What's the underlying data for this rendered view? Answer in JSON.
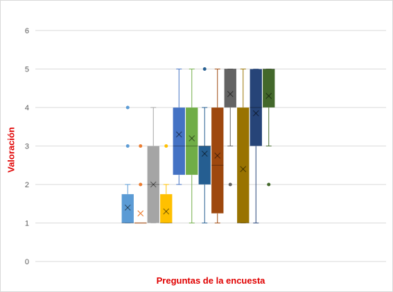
{
  "chart_data": {
    "type": "box",
    "title": "",
    "xlabel": "Preguntas de la encuesta",
    "ylabel": "Valoración",
    "ylim": [
      0,
      6
    ],
    "yticks": [
      0,
      1,
      2,
      3,
      4,
      5,
      6
    ],
    "grid": true,
    "legend": "none",
    "series": [
      {
        "color": "#5b9bd5",
        "min": 1,
        "q1": 1,
        "median": 1,
        "q3": 1.75,
        "max": 2,
        "mean": 1.4,
        "outliers": [
          3,
          4
        ]
      },
      {
        "color": "#ed7d31",
        "min": 1,
        "q1": 1,
        "median": 1,
        "q3": 1,
        "max": 1,
        "mean": 1.25,
        "outliers": [
          2,
          3
        ]
      },
      {
        "color": "#a5a5a5",
        "min": 1,
        "q1": 1,
        "median": 2,
        "q3": 3,
        "max": 4,
        "mean": 2.0,
        "outliers": []
      },
      {
        "color": "#ffc000",
        "min": 1,
        "q1": 1,
        "median": 1,
        "q3": 1.75,
        "max": 2,
        "mean": 1.3,
        "outliers": [
          3
        ]
      },
      {
        "color": "#4472c4",
        "min": 2,
        "q1": 2.25,
        "median": 3,
        "q3": 4,
        "max": 5,
        "mean": 3.3,
        "outliers": []
      },
      {
        "color": "#70ad47",
        "min": 1,
        "q1": 2.25,
        "median": 3,
        "q3": 4,
        "max": 5,
        "mean": 3.2,
        "outliers": []
      },
      {
        "color": "#255e91",
        "min": 1,
        "q1": 2,
        "median": 3,
        "q3": 3,
        "max": 4,
        "mean": 2.8,
        "outliers": [
          5
        ]
      },
      {
        "color": "#9e480e",
        "min": 1,
        "q1": 1.25,
        "median": 2.5,
        "q3": 4,
        "max": 5,
        "mean": 2.75,
        "outliers": []
      },
      {
        "color": "#636363",
        "min": 3,
        "q1": 4,
        "median": 5,
        "q3": 5,
        "max": 5,
        "mean": 4.35,
        "outliers": [
          2
        ]
      },
      {
        "color": "#997300",
        "min": 1,
        "q1": 1,
        "median": 1,
        "q3": 4,
        "max": 5,
        "mean": 2.4,
        "outliers": []
      },
      {
        "color": "#264478",
        "min": 1,
        "q1": 3,
        "median": 4,
        "q3": 5,
        "max": 5,
        "mean": 3.85,
        "outliers": []
      },
      {
        "color": "#43682b",
        "min": 3,
        "q1": 4,
        "median": 5,
        "q3": 5,
        "max": 5,
        "mean": 4.3,
        "outliers": [
          2
        ]
      }
    ]
  }
}
